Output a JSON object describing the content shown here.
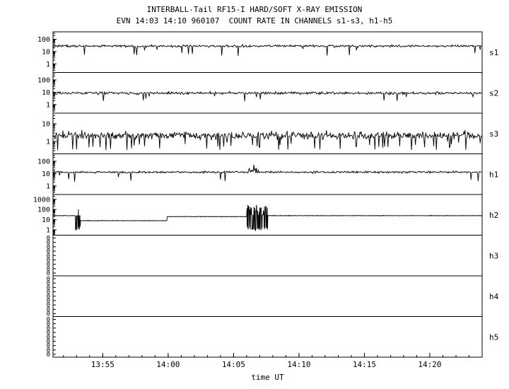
{
  "chart_data": {
    "type": "line",
    "title": "INTERBALL-Tail RF15-I HARD/SOFT X-RAY EMISSION",
    "subtitle": "EVN 14:03 14:10 960107  COUNT RATE IN CHANNELS s1-s3, h1-h5",
    "xlabel": "time UT",
    "colors": {
      "fg": "#000000",
      "bg": "#ffffff"
    },
    "x_axis": {
      "unit": "minutes after 13:50 UT",
      "t0": 1.2,
      "t1": 34.0,
      "minor_step": 1,
      "major": [
        {
          "t": 5,
          "label": "13:55"
        },
        {
          "t": 10,
          "label": "14:00"
        },
        {
          "t": 15,
          "label": "14:05"
        },
        {
          "t": 20,
          "label": "14:10"
        },
        {
          "t": 25,
          "label": "14:15"
        },
        {
          "t": 30,
          "label": "14:20"
        }
      ]
    },
    "panels": [
      {
        "label": "s1",
        "yticks": [
          100,
          10,
          1
        ],
        "ylim": [
          0.2,
          400
        ],
        "series": {
          "kind": "noise",
          "baseline": 28,
          "dex": 0.13,
          "dip_prob": 0.02,
          "dip_max": 6
        }
      },
      {
        "label": "s2",
        "yticks": [
          100,
          10,
          1
        ],
        "ylim": [
          0.2,
          400
        ],
        "series": {
          "kind": "noise",
          "baseline": 8.5,
          "dex": 0.16,
          "dip_prob": 0.02,
          "dip_max": 5
        }
      },
      {
        "label": "s3",
        "yticks": [
          10,
          1
        ],
        "ylim": [
          0.2,
          40
        ],
        "series": {
          "kind": "noise",
          "baseline": 2.2,
          "dex": 0.32,
          "dip_prob": 0.1,
          "dip_max": 6
        }
      },
      {
        "label": "h1",
        "yticks": [
          100,
          10,
          1
        ],
        "ylim": [
          0.2,
          400
        ],
        "series": {
          "kind": "noise",
          "baseline": 13,
          "dex": 0.12,
          "dip_prob": 0.015,
          "dip_max": 5,
          "bursts": [
            {
              "t0": 15.9,
              "t1": 17.0,
              "vmax": 55
            }
          ]
        }
      },
      {
        "label": "h2",
        "yticks": [
          1000,
          100,
          10,
          1
        ],
        "ylim": [
          0.3,
          3000
        ],
        "series": {
          "kind": "steps",
          "dex": 0.03,
          "segments": [
            {
              "t0": 1.2,
              "t1": 2.8,
              "v": 25
            },
            {
              "t0": 3.3,
              "t1": 9.9,
              "v": 8
            },
            {
              "t0": 9.9,
              "t1": 16.0,
              "v": 20
            },
            {
              "t0": 17.6,
              "t1": 34.0,
              "v": 25
            }
          ],
          "bursts": [
            {
              "t0": 2.8,
              "t1": 3.3,
              "vmin": 0.9,
              "vmax": 110,
              "vbase": 25,
              "p_lo": 0.35,
              "p_hi": 0.15
            },
            {
              "t0": 16.0,
              "t1": 17.6,
              "vmin": 0.9,
              "vmax": 300,
              "vbase": 30,
              "p_lo": 0.3,
              "p_hi": 0.45
            }
          ]
        }
      },
      {
        "label": "h3",
        "yticks_zeros": 9,
        "zero_label": "0",
        "series": {
          "kind": "flat"
        }
      },
      {
        "label": "h4",
        "yticks_zeros": 9,
        "zero_label": "0",
        "series": {
          "kind": "flat"
        }
      },
      {
        "label": "h5",
        "yticks_zeros": 9,
        "zero_label": "0",
        "series": {
          "kind": "flat"
        }
      }
    ]
  }
}
